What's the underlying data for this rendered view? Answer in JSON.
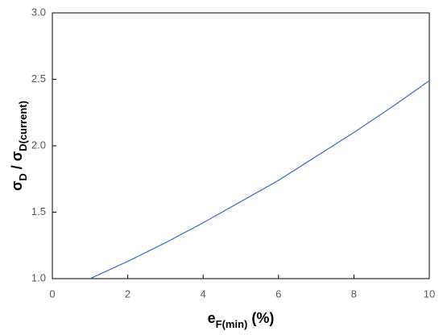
{
  "chart_data": {
    "type": "line",
    "xlabel": [
      {
        "text": "e",
        "sub": false
      },
      {
        "text": "F(min)",
        "sub": true
      },
      {
        "text": " (%)",
        "sub": false
      }
    ],
    "ylabel": [
      {
        "text": "σ",
        "sub": false
      },
      {
        "text": "D",
        "sub": true
      },
      {
        "text": " / σ",
        "sub": false
      },
      {
        "text": "D(current)",
        "sub": true
      }
    ],
    "x": [
      1,
      2,
      3,
      4,
      5,
      6,
      7,
      8,
      9,
      10
    ],
    "series": [
      {
        "color": "#4472c4",
        "values": [
          1.0,
          1.13,
          1.27,
          1.42,
          1.58,
          1.74,
          1.92,
          2.1,
          2.29,
          2.49
        ]
      }
    ],
    "xlim": [
      0,
      10
    ],
    "xticks": [
      0,
      2,
      4,
      6,
      8,
      10
    ],
    "ylim": [
      1,
      3
    ],
    "yticks": [
      {
        "value": 1,
        "label": "1.0"
      },
      {
        "value": 1.5,
        "label": "1.5"
      },
      {
        "value": 2,
        "label": "2.0"
      },
      {
        "value": 2.5,
        "label": "2.5"
      },
      {
        "value": 3,
        "label": "3.0"
      }
    ],
    "grid": false
  }
}
